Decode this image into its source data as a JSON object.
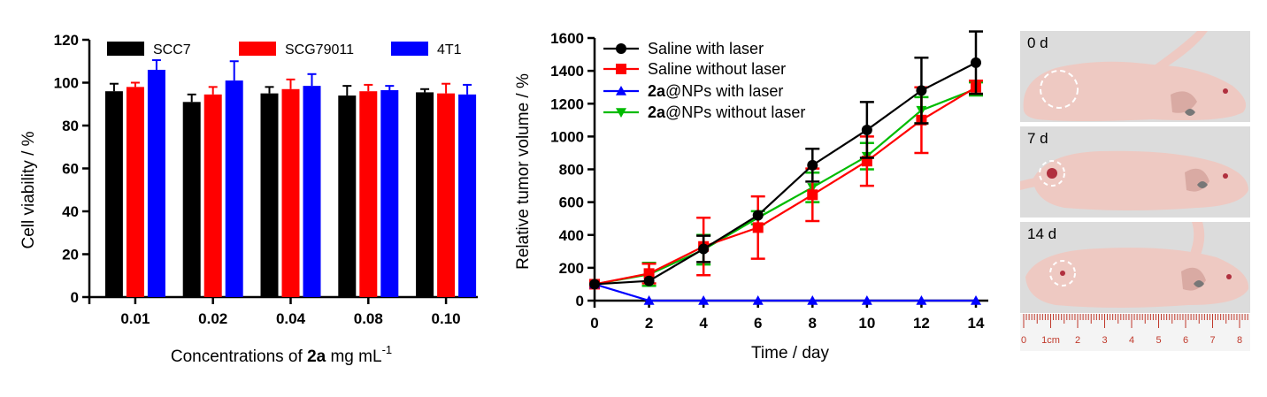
{
  "chart_data": [
    {
      "type": "bar",
      "ylabel": "Cell viability / %",
      "xlabel_parts": [
        "Concentrations of ",
        "2a",
        " mg mL",
        "-1"
      ],
      "ylim": [
        0,
        120
      ],
      "yticks": [
        0,
        20,
        40,
        60,
        80,
        100,
        120
      ],
      "categories": [
        "0.01",
        "0.02",
        "0.04",
        "0.08",
        "0.10"
      ],
      "legend_position": "top",
      "series": [
        {
          "name": "SCC7",
          "color": "#000000",
          "values": [
            96,
            91,
            95,
            94,
            95.5
          ],
          "errors": [
            3.5,
            3.5,
            3,
            4.5,
            1.5
          ]
        },
        {
          "name": "SCG79011",
          "color": "#ff0000",
          "values": [
            98,
            94.5,
            97,
            96,
            95
          ],
          "errors": [
            2,
            3.5,
            4.5,
            3,
            4.5
          ]
        },
        {
          "name": "4T1",
          "color": "#0000ff",
          "values": [
            106,
            101,
            98.5,
            96.5,
            94.5
          ],
          "errors": [
            4.5,
            9,
            5.5,
            2,
            4.5
          ]
        }
      ]
    },
    {
      "type": "line",
      "ylabel": "Relative tumor volume / %",
      "xlabel": "Time / day",
      "xlim": [
        0,
        14
      ],
      "ylim": [
        0,
        1600
      ],
      "xticks": [
        0,
        2,
        4,
        6,
        8,
        10,
        12,
        14
      ],
      "yticks": [
        0,
        200,
        400,
        600,
        800,
        1000,
        1200,
        1400,
        1600
      ],
      "legend_position": "top-left",
      "x": [
        0,
        2,
        4,
        6,
        8,
        10,
        12,
        14
      ],
      "series": [
        {
          "name": "Saline with laser",
          "color": "#000000",
          "marker": "circle",
          "values": [
            100,
            120,
            315,
            520,
            825,
            1040,
            1280,
            1450
          ],
          "errors": [
            0,
            0,
            80,
            0,
            100,
            170,
            200,
            190
          ]
        },
        {
          "name": "Saline without laser",
          "color": "#ff0000",
          "marker": "square",
          "values": [
            100,
            165,
            330,
            445,
            645,
            850,
            1100,
            1300
          ],
          "errors": [
            0,
            60,
            175,
            190,
            160,
            150,
            200,
            40
          ]
        },
        {
          "name_parts": [
            "2a",
            "@NPs with laser"
          ],
          "color": "#0000ff",
          "marker": "triangle-up",
          "values": [
            100,
            0,
            0,
            0,
            0,
            0,
            0,
            0
          ],
          "errors": [
            0,
            0,
            0,
            0,
            0,
            0,
            0,
            0
          ]
        },
        {
          "name_parts": [
            "2a",
            "@NPs without laser"
          ],
          "color": "#00bb00",
          "marker": "triangle-down",
          "values": [
            100,
            160,
            310,
            505,
            690,
            880,
            1160,
            1290
          ],
          "errors": [
            0,
            70,
            90,
            40,
            90,
            80,
            80,
            40
          ]
        }
      ]
    }
  ],
  "photos": {
    "labels": [
      "0 d",
      "7 d",
      "14 d"
    ],
    "ruler_labels": [
      "0",
      "1cm",
      "2",
      "3",
      "4",
      "5",
      "6",
      "7",
      "8"
    ],
    "colors": {
      "background": "#dcdcdc",
      "skin": "#eec9c2",
      "skin_shadow": "#d9aaa3",
      "tumor": "#b0303e",
      "circle": "#ffffff"
    }
  }
}
